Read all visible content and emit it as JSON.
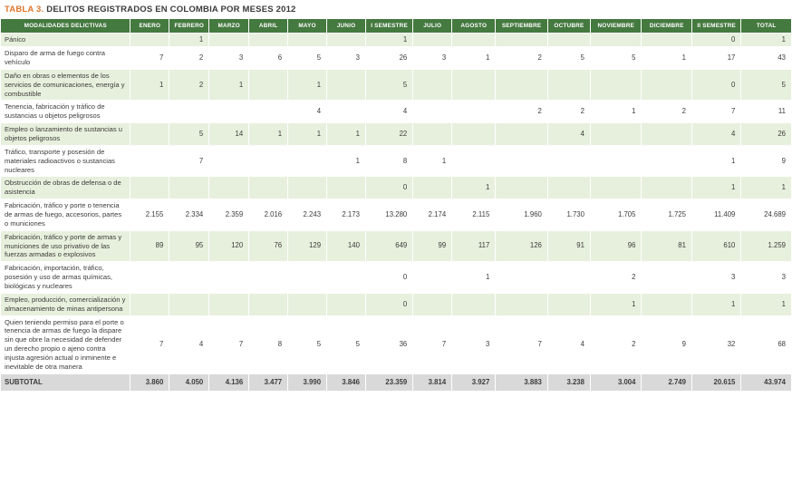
{
  "title": {
    "prefix": "TABLA 3.",
    "text": "DELITOS REGISTRADOS EN COLOMBIA POR MESES 2012"
  },
  "colors": {
    "header_bg": "#44793f",
    "row_stripe": "#e7f0dd",
    "subtotal_bg": "#d9d9d9",
    "title_accent": "#e0762a",
    "body_text": "#3c3c3b"
  },
  "table": {
    "columns": [
      "MODALIDADES DELICTIVAS",
      "ENERO",
      "FEBRERO",
      "MARZO",
      "ABRIL",
      "MAYO",
      "JUNIO",
      "I SEMESTRE",
      "JULIO",
      "AGOSTO",
      "SEPTIEMBRE",
      "OCTUBRE",
      "NOVIEMBRE",
      "DICIEMBRE",
      "II SEMESTRE",
      "TOTAL"
    ],
    "rows": [
      {
        "label": "Pánico",
        "values": [
          "",
          "1",
          "",
          "",
          "",
          "",
          "1",
          "",
          "",
          "",
          "",
          "",
          "",
          "0",
          "1"
        ]
      },
      {
        "label": "Disparo de arma de fuego contra vehículo",
        "values": [
          "7",
          "2",
          "3",
          "6",
          "5",
          "3",
          "26",
          "3",
          "1",
          "2",
          "5",
          "5",
          "1",
          "17",
          "43"
        ]
      },
      {
        "label": "Daño en obras o elementos de los servicios de comunicaciones, energía y combustible",
        "values": [
          "1",
          "2",
          "1",
          "",
          "1",
          "",
          "5",
          "",
          "",
          "",
          "",
          "",
          "",
          "0",
          "5"
        ]
      },
      {
        "label": "Tenencia, fabricación y tráfico de sustancias u objetos peligrosos",
        "values": [
          "",
          "",
          "",
          "",
          "4",
          "",
          "4",
          "",
          "",
          "2",
          "2",
          "1",
          "2",
          "7",
          "11"
        ]
      },
      {
        "label": "Empleo o lanzamiento de sustancias u objetos peligrosos",
        "values": [
          "",
          "5",
          "14",
          "1",
          "1",
          "1",
          "22",
          "",
          "",
          "",
          "4",
          "",
          "",
          "4",
          "26"
        ]
      },
      {
        "label": "Tráfico, transporte y posesión de materiales radioactivos o sustancias nucleares",
        "values": [
          "",
          "7",
          "",
          "",
          "",
          "1",
          "8",
          "1",
          "",
          "",
          "",
          "",
          "",
          "1",
          "9"
        ]
      },
      {
        "label": "Obstrucción de obras de defensa o de asistencia",
        "values": [
          "",
          "",
          "",
          "",
          "",
          "",
          "0",
          "",
          "1",
          "",
          "",
          "",
          "",
          "1",
          "1"
        ]
      },
      {
        "label": "Fabricación, tráfico y porte o tenencia de armas de fuego, accesorios, partes o municiones",
        "values": [
          "2.155",
          "2.334",
          "2.359",
          "2.016",
          "2.243",
          "2.173",
          "13.280",
          "2.174",
          "2.115",
          "1.960",
          "1.730",
          "1.705",
          "1.725",
          "11.409",
          "24.689"
        ]
      },
      {
        "label": "Fabricación, tráfico y porte de armas y municiones de uso privativo de las fuerzas armadas o explosivos",
        "values": [
          "89",
          "95",
          "120",
          "76",
          "129",
          "140",
          "649",
          "99",
          "117",
          "126",
          "91",
          "96",
          "81",
          "610",
          "1.259"
        ]
      },
      {
        "label": "Fabricación, importación, tráfico, posesión y uso de armas químicas, biológicas y nucleares",
        "values": [
          "",
          "",
          "",
          "",
          "",
          "",
          "0",
          "",
          "1",
          "",
          "",
          "2",
          "",
          "3",
          "3"
        ]
      },
      {
        "label": "Empleo, producción, comercialización y almacenamiento de minas antipersona",
        "values": [
          "",
          "",
          "",
          "",
          "",
          "",
          "0",
          "",
          "",
          "",
          "",
          "1",
          "",
          "1",
          "1"
        ]
      },
      {
        "label": "Quien teniendo permiso para el porte o tenencia de armas de fuego la dispare sin que obre la necesidad de defender un derecho propio o ajeno contra injusta agresión actual o inminente e inevitable de otra manera",
        "values": [
          "7",
          "4",
          "7",
          "8",
          "5",
          "5",
          "36",
          "7",
          "3",
          "7",
          "4",
          "2",
          "9",
          "32",
          "68"
        ]
      }
    ],
    "subtotal": {
      "label": "SUBTOTAL",
      "values": [
        "3.860",
        "4.050",
        "4.136",
        "3.477",
        "3.990",
        "3.846",
        "23.359",
        "3.814",
        "3.927",
        "3.883",
        "3.238",
        "3.004",
        "2.749",
        "20.615",
        "43.974"
      ]
    }
  }
}
